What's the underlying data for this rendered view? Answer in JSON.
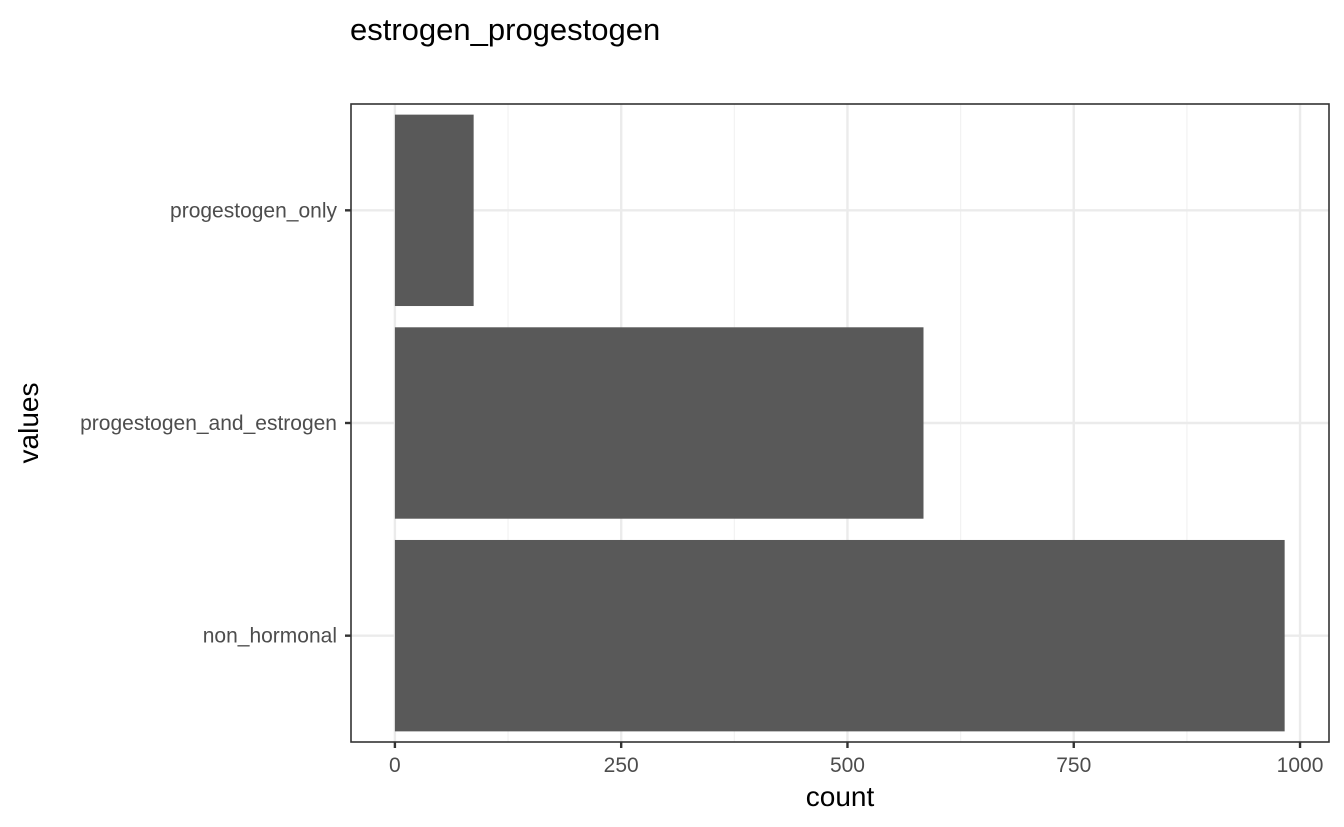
{
  "chart_data": {
    "type": "bar",
    "orientation": "horizontal",
    "title": "estrogen_progestogen",
    "xlabel": "count",
    "ylabel": "values",
    "categories": [
      "progestogen_only",
      "progestogen_and_estrogen",
      "non_hormonal"
    ],
    "values": [
      87,
      584,
      983
    ],
    "xlim": [
      -48.5,
      1032
    ],
    "xticks": [
      0,
      250,
      500,
      750,
      1000
    ],
    "grid": true,
    "legend": "none",
    "colors": {
      "bar": "#595959",
      "grid_major": "#ebebeb",
      "grid_minor": "#f2f2f2",
      "panel_border": "#333333",
      "tick_text": "#4d4d4d"
    }
  }
}
